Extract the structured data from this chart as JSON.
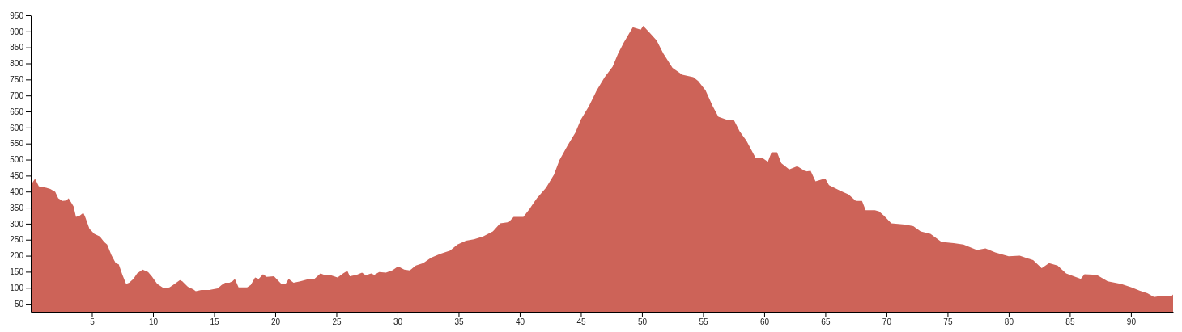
{
  "chart_data": {
    "type": "area",
    "color": "#cd6358",
    "x": [
      0,
      0.35,
      0.66,
      1.27,
      1.6,
      2.0,
      2.25,
      2.6,
      2.9,
      3.1,
      3.5,
      3.7,
      4.0,
      4.3,
      4.45,
      4.8,
      5.2,
      5.65,
      6.0,
      6.25,
      6.6,
      6.95,
      7.2,
      7.5,
      7.8,
      8.05,
      8.4,
      8.7,
      9.15,
      9.6,
      9.9,
      10.35,
      10.9,
      11.35,
      11.65,
      12.2,
      12.4,
      12.85,
      13.3,
      13.5,
      13.95,
      14.6,
      15.3,
      15.6,
      15.9,
      16.25,
      16.5,
      16.7,
      17.0,
      17.7,
      18.0,
      18.35,
      18.65,
      19.0,
      19.3,
      19.9,
      20.2,
      20.5,
      20.85,
      21.1,
      21.5,
      22.05,
      22.6,
      23.15,
      23.7,
      24.1,
      24.55,
      25.1,
      25.55,
      25.9,
      26.1,
      26.65,
      27.1,
      27.4,
      27.85,
      28.1,
      28.5,
      29.05,
      29.6,
      30.05,
      30.55,
      31.0,
      31.5,
      32.1,
      32.75,
      33.5,
      34.3,
      34.9,
      35.6,
      36.25,
      37.0,
      37.8,
      38.4,
      39.1,
      39.5,
      40.3,
      40.8,
      41.4,
      42.15,
      42.8,
      43.25,
      43.9,
      44.55,
      45.0,
      45.65,
      46.3,
      46.95,
      47.6,
      48.05,
      48.5,
      48.8,
      49.25,
      49.9,
      50.1,
      50.6,
      51.2,
      51.75,
      52.5,
      53.3,
      54.2,
      54.6,
      55.2,
      55.8,
      56.25,
      56.9,
      57.5,
      58.0,
      58.55,
      59.3,
      59.85,
      60.3,
      60.6,
      61.05,
      61.4,
      62.05,
      62.7,
      63.4,
      63.8,
      64.2,
      65.0,
      65.3,
      66.2,
      66.9,
      67.5,
      68.0,
      68.3,
      69.05,
      69.4,
      69.8,
      70.4,
      71.5,
      72.2,
      72.8,
      73.6,
      74.5,
      75.5,
      76.3,
      77.4,
      78.1,
      78.9,
      80.0,
      80.9,
      82.0,
      82.7,
      83.3,
      84.0,
      84.7,
      85.9,
      86.2,
      87.2,
      88.1,
      89.2,
      90.05,
      90.7,
      91.35,
      91.9,
      92.45,
      93.3,
      93.45
    ],
    "values": [
      420,
      440,
      416,
      412,
      408,
      399,
      379,
      371,
      372,
      379,
      354,
      321,
      325,
      334,
      321,
      284,
      268,
      260,
      243,
      235,
      202,
      177,
      173,
      140,
      112,
      116,
      128,
      145,
      157,
      149,
      136,
      112,
      98,
      101,
      109,
      124,
      120,
      103,
      95,
      89,
      93,
      93,
      98,
      108,
      116,
      116,
      120,
      128,
      101,
      101,
      109,
      132,
      128,
      142,
      134,
      136,
      124,
      112,
      112,
      128,
      116,
      120,
      126,
      126,
      145,
      139,
      139,
      132,
      145,
      153,
      136,
      140,
      147,
      139,
      145,
      140,
      149,
      147,
      155,
      167,
      157,
      154,
      169,
      177,
      194,
      206,
      216,
      235,
      247,
      251,
      260,
      276,
      301,
      305,
      321,
      321,
      346,
      379,
      412,
      453,
      498,
      543,
      584,
      625,
      666,
      716,
      757,
      790,
      831,
      864,
      884,
      913,
      905,
      917,
      897,
      872,
      831,
      786,
      765,
      757,
      745,
      716,
      666,
      634,
      625,
      625,
      588,
      559,
      505,
      505,
      493,
      523,
      523,
      489,
      469,
      479,
      463,
      465,
      432,
      441,
      420,
      403,
      391,
      371,
      371,
      342,
      342,
      338,
      325,
      301,
      297,
      292,
      276,
      268,
      243,
      239,
      235,
      218,
      223,
      210,
      198,
      200,
      186,
      161,
      177,
      169,
      145,
      128,
      142,
      140,
      120,
      112,
      101,
      91,
      83,
      71,
      75,
      73,
      79
    ],
    "xlim": [
      0,
      93.45
    ],
    "ylim": [
      25,
      950
    ],
    "xticks": [
      5,
      10,
      15,
      20,
      25,
      30,
      35,
      40,
      45,
      50,
      55,
      60,
      65,
      70,
      75,
      80,
      85,
      90
    ],
    "yticks": [
      50,
      100,
      150,
      200,
      250,
      300,
      350,
      400,
      450,
      500,
      550,
      600,
      650,
      700,
      750,
      800,
      850,
      900,
      950
    ],
    "grid": false
  }
}
